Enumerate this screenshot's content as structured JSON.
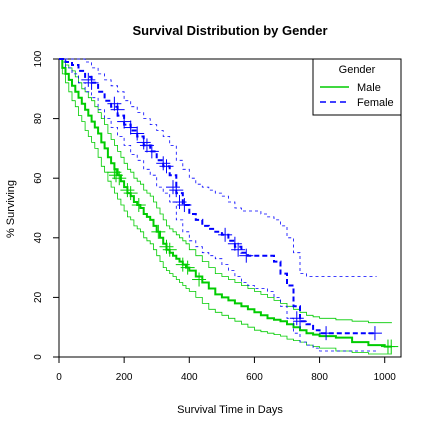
{
  "chart_data": {
    "type": "line",
    "subtype": "kaplan-meier",
    "title": "Survival Distribution by Gender",
    "xlabel": "Survival Time in Days",
    "ylabel": "% Surviving",
    "xlim": [
      0,
      1050
    ],
    "ylim": [
      0,
      100
    ],
    "xticks": [
      "0",
      "200",
      "400",
      "600",
      "800",
      "1000"
    ],
    "yticks": [
      "0",
      "20",
      "40",
      "60",
      "80",
      "100"
    ],
    "legend": {
      "title": "Gender",
      "placement": "top-right",
      "entries": [
        "Male",
        "Female"
      ]
    },
    "colors": {
      "Male": "#00cc00",
      "Female": "#0000ff"
    },
    "grid": false,
    "series": [
      {
        "name": "Male",
        "color": "#00cc00",
        "line_style": "solid",
        "x": [
          0,
          10,
          20,
          30,
          40,
          50,
          60,
          70,
          80,
          90,
          100,
          110,
          120,
          130,
          140,
          150,
          160,
          170,
          180,
          190,
          200,
          210,
          220,
          230,
          240,
          250,
          260,
          270,
          280,
          290,
          300,
          310,
          320,
          330,
          340,
          350,
          360,
          370,
          380,
          390,
          400,
          420,
          440,
          460,
          480,
          500,
          520,
          540,
          560,
          580,
          600,
          620,
          640,
          660,
          680,
          700,
          720,
          740,
          760,
          780,
          800,
          850,
          900,
          950,
          1000,
          1022
        ],
        "estimate": [
          100,
          97,
          95,
          93,
          91,
          89,
          87,
          85,
          83,
          81,
          79,
          77,
          75,
          72,
          70,
          67,
          65,
          63,
          61,
          59,
          57,
          55,
          54,
          52,
          51,
          50,
          48,
          47,
          46,
          44,
          42,
          40,
          38,
          36,
          35,
          34,
          33,
          32,
          31,
          30,
          29,
          27,
          25,
          23,
          21,
          20,
          19,
          18,
          17,
          16,
          15,
          14,
          13,
          12.5,
          12,
          11,
          10,
          9,
          8,
          7.5,
          7,
          6.5,
          5,
          4,
          3.5,
          3.5
        ],
        "lower": [
          100,
          95,
          92,
          89,
          86,
          84,
          81,
          79,
          76,
          74,
          72,
          70,
          67,
          64,
          62,
          59,
          57,
          55,
          53,
          51,
          49,
          47,
          46,
          44,
          43,
          42,
          40,
          39,
          38,
          36,
          34,
          32,
          30,
          29,
          28,
          27,
          26,
          25,
          24,
          23,
          22,
          20,
          18,
          16,
          15,
          14,
          13,
          12,
          11,
          10,
          9,
          8.5,
          8,
          7.5,
          7,
          6,
          5.5,
          5,
          4,
          3.5,
          3,
          2,
          1.5,
          1,
          1,
          1
        ],
        "upper": [
          100,
          99,
          98,
          97,
          96,
          94,
          92,
          90,
          89,
          87,
          86,
          84,
          82,
          80,
          78,
          75,
          73,
          71,
          69,
          67,
          65,
          63,
          62,
          60,
          59,
          58,
          56,
          55,
          54,
          52,
          50,
          48,
          46,
          44,
          43,
          42,
          41,
          40,
          39,
          38,
          36,
          34,
          32,
          30,
          28,
          27,
          26,
          25,
          24,
          23,
          22,
          21,
          20,
          19,
          18,
          17,
          16,
          15,
          14,
          13.5,
          13,
          12.5,
          12,
          11.5,
          11.5,
          11.5
        ],
        "censored": [
          [
            170,
            62
          ],
          [
            175,
            61
          ],
          [
            185,
            60
          ],
          [
            210,
            56
          ],
          [
            220,
            55
          ],
          [
            245,
            51
          ],
          [
            305,
            42
          ],
          [
            330,
            37
          ],
          [
            340,
            36
          ],
          [
            380,
            31
          ],
          [
            395,
            30
          ],
          [
            430,
            26
          ],
          [
            1010,
            3.5
          ],
          [
            1020,
            3.5
          ]
        ]
      },
      {
        "name": "Female",
        "color": "#0000ff",
        "line_style": "dashed",
        "x": [
          0,
          20,
          40,
          60,
          80,
          100,
          120,
          140,
          160,
          180,
          200,
          220,
          240,
          260,
          280,
          300,
          320,
          340,
          360,
          380,
          400,
          420,
          440,
          460,
          480,
          500,
          520,
          540,
          560,
          580,
          600,
          620,
          640,
          660,
          680,
          700,
          720,
          740,
          760,
          780,
          800,
          850,
          900,
          950,
          975
        ],
        "estimate": [
          100,
          99,
          98,
          96,
          94,
          92,
          89,
          86,
          84,
          81,
          78,
          76,
          74,
          71,
          69,
          66,
          64,
          61,
          55,
          51,
          48,
          46,
          44,
          43,
          42,
          41,
          39,
          37,
          35,
          34,
          34,
          34,
          34,
          32,
          28,
          24,
          17,
          12,
          11,
          9,
          8,
          8,
          8,
          8,
          8
        ],
        "lower": [
          100,
          97,
          95,
          92,
          89,
          87,
          83,
          80,
          77,
          74,
          71,
          68,
          66,
          63,
          61,
          57,
          55,
          52,
          46,
          42,
          39,
          37,
          35,
          34,
          33,
          31,
          29,
          27,
          25,
          24,
          23,
          23,
          22,
          20,
          17,
          13,
          8,
          5,
          4,
          3,
          2,
          2,
          2,
          2,
          2
        ],
        "upper": [
          100,
          100,
          100,
          100,
          99,
          97,
          95,
          93,
          91,
          89,
          86,
          84,
          82,
          80,
          78,
          76,
          74,
          71,
          66,
          63,
          60,
          58,
          57,
          56,
          55,
          54,
          52,
          50,
          49,
          49,
          49,
          48,
          47,
          46,
          44,
          40,
          35,
          28,
          27,
          27,
          27,
          27,
          27,
          27,
          27
        ],
        "censored": [
          [
            90,
            93
          ],
          [
            100,
            92
          ],
          [
            170,
            85
          ],
          [
            180,
            83
          ],
          [
            200,
            79
          ],
          [
            220,
            77
          ],
          [
            240,
            75
          ],
          [
            260,
            72
          ],
          [
            270,
            71
          ],
          [
            285,
            69
          ],
          [
            320,
            65
          ],
          [
            330,
            64
          ],
          [
            350,
            57
          ],
          [
            360,
            56
          ],
          [
            370,
            52
          ],
          [
            385,
            51
          ],
          [
            510,
            41
          ],
          [
            540,
            38
          ],
          [
            550,
            36
          ],
          [
            575,
            34
          ],
          [
            730,
            13
          ],
          [
            740,
            12
          ],
          [
            820,
            8
          ],
          [
            970,
            8
          ]
        ]
      }
    ]
  }
}
